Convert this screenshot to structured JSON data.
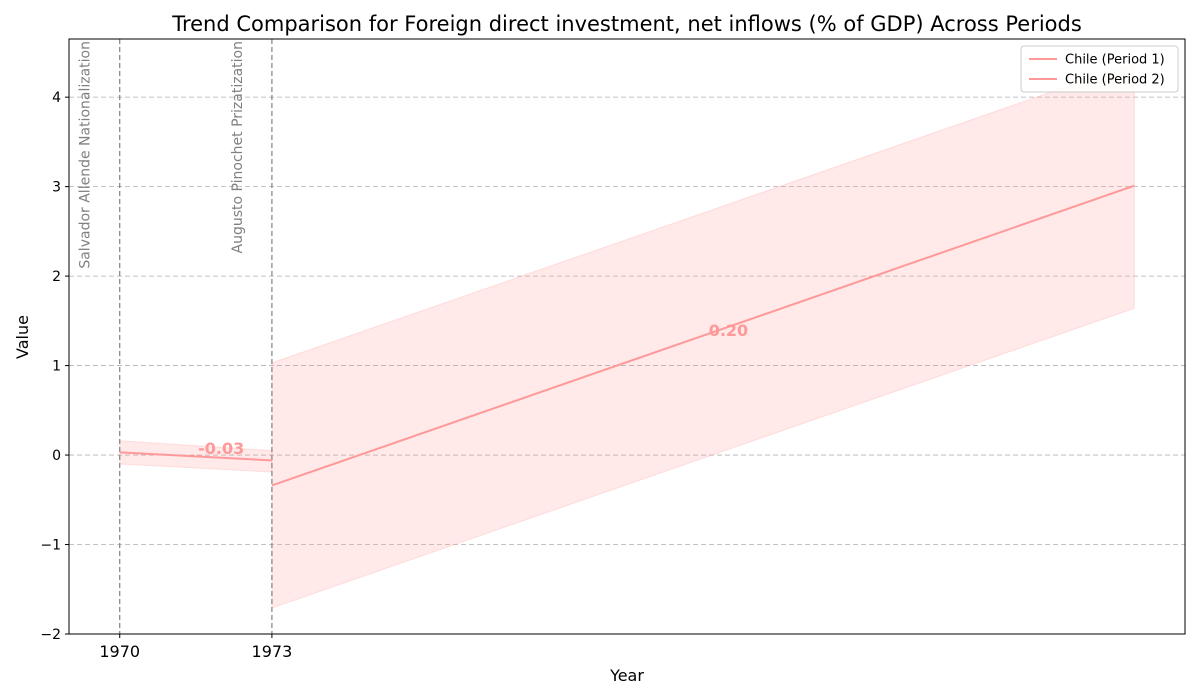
{
  "chart_data": {
    "type": "line",
    "title": "Trend Comparison for Foreign direct investment, net inflows (% of GDP) Across Periods",
    "xlabel": "Year",
    "ylabel": "Value",
    "xlim": [
      1969,
      1991
    ],
    "ylim": [
      -2,
      4.65
    ],
    "yticks": [
      -2,
      -1,
      0,
      1,
      2,
      3,
      4
    ],
    "ytick_labels": [
      "−2",
      "−1",
      "0",
      "1",
      "2",
      "3",
      "4"
    ],
    "xticks": [
      1970,
      1973
    ],
    "xtick_labels": [
      "1970",
      "1973"
    ],
    "grid": "horizontal dashed",
    "legend_position": "top-right",
    "series": [
      {
        "name": "Chile (Period 1)",
        "color": "#ff9999",
        "x": [
          1970,
          1973
        ],
        "y": [
          0.03,
          -0.06
        ],
        "band_upper": [
          0.16,
          0.05
        ],
        "band_lower": [
          -0.1,
          -0.19
        ],
        "slope_label": "-0.03",
        "slope_label_pos": [
          1972,
          0.08
        ]
      },
      {
        "name": "Chile (Period 2)",
        "color": "#ff9999",
        "x": [
          1973,
          1990
        ],
        "y": [
          -0.34,
          3.01
        ],
        "band_upper": [
          1.03,
          4.38
        ],
        "band_lower": [
          -1.71,
          1.64
        ],
        "slope_label": "0.20",
        "slope_label_pos": [
          1982,
          1.4
        ]
      }
    ],
    "events": [
      {
        "x": 1970,
        "label": "Salvador Allende Nationalization"
      },
      {
        "x": 1973,
        "label": "Augusto Pinochet Prizatization"
      }
    ]
  }
}
